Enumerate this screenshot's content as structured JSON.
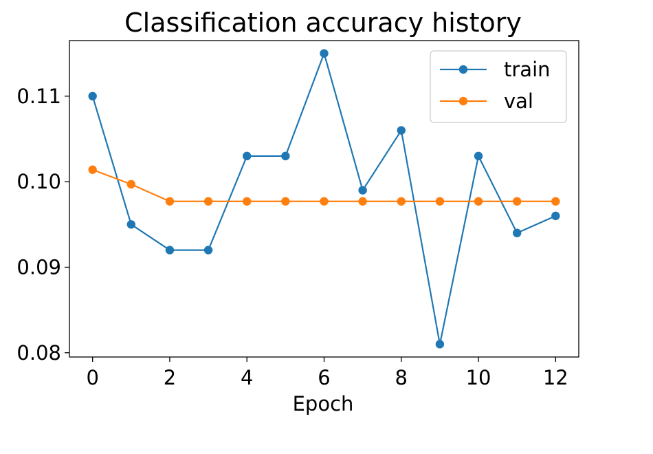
{
  "chart_data": {
    "type": "line",
    "title": "Classification accuracy history",
    "xlabel": "Epoch",
    "ylabel": "",
    "xlim": [
      -0.6,
      12.6
    ],
    "ylim": [
      0.0795,
      0.1165
    ],
    "xticks": [
      0,
      2,
      4,
      6,
      8,
      10,
      12
    ],
    "xtick_labels": [
      "0",
      "2",
      "4",
      "6",
      "8",
      "10",
      "12"
    ],
    "yticks": [
      0.08,
      0.09,
      0.1,
      0.11
    ],
    "ytick_labels": [
      "0.08",
      "0.09",
      "0.10",
      "0.11"
    ],
    "x": [
      0,
      1,
      2,
      3,
      4,
      5,
      6,
      7,
      8,
      9,
      10,
      11,
      12
    ],
    "series": [
      {
        "name": "train",
        "color": "#1f77b4",
        "values": [
          0.11,
          0.095,
          0.092,
          0.092,
          0.103,
          0.103,
          0.115,
          0.099,
          0.106,
          0.081,
          0.103,
          0.094,
          0.096
        ]
      },
      {
        "name": "val",
        "color": "#ff7f0e",
        "values": [
          0.1014,
          0.0997,
          0.0977,
          0.0977,
          0.0977,
          0.0977,
          0.0977,
          0.0977,
          0.0977,
          0.0977,
          0.0977,
          0.0977,
          0.0977
        ]
      }
    ],
    "grid": false,
    "legend": "top-right",
    "marker": "circle"
  }
}
